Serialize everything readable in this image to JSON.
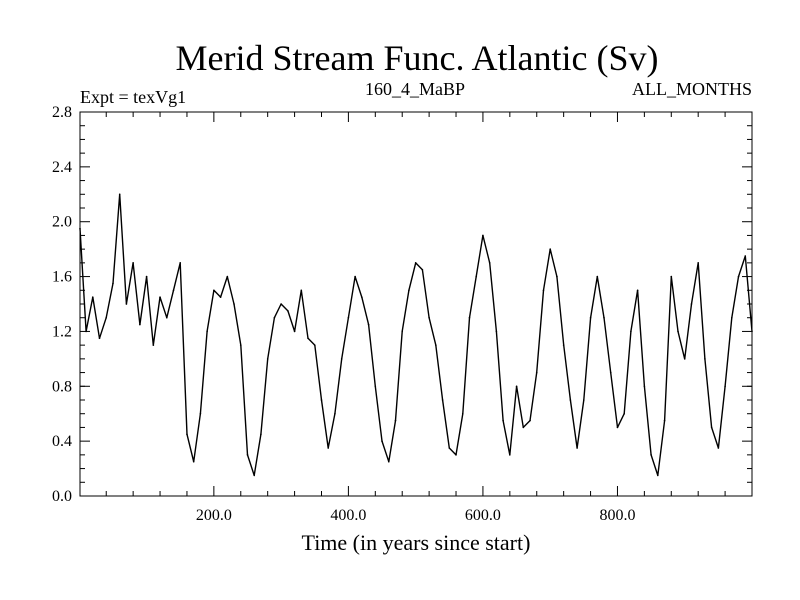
{
  "chart_data": {
    "type": "line",
    "title": "Merid Stream Func. Atlantic (Sv)",
    "subtitle_left": "Expt = texVg1",
    "subtitle_center": "160_4_MaBP",
    "subtitle_right": "ALL_MONTHS",
    "xlabel": "Time (in years since start)",
    "ylabel": "",
    "xlim": [
      1,
      1000
    ],
    "ylim": [
      0.0,
      2.8
    ],
    "xticks": [
      200,
      400,
      600,
      800
    ],
    "xtick_labels": [
      "200.0",
      "400.0",
      "600.0",
      "800.0"
    ],
    "yticks": [
      0.0,
      0.4,
      0.8,
      1.2,
      1.6,
      2.0,
      2.4,
      2.8
    ],
    "ytick_labels": [
      "0.0",
      "0.4",
      "0.8",
      "1.2",
      "1.6",
      "2.0",
      "2.4",
      "2.8"
    ],
    "grid": false,
    "color": "#000000",
    "series": [
      {
        "name": "Merid Stream Func. Atlantic",
        "x": [
          1,
          10,
          20,
          30,
          40,
          50,
          60,
          70,
          80,
          90,
          100,
          110,
          120,
          130,
          140,
          150,
          160,
          170,
          180,
          190,
          200,
          210,
          220,
          230,
          240,
          250,
          260,
          270,
          280,
          290,
          300,
          310,
          320,
          330,
          340,
          350,
          360,
          370,
          380,
          390,
          400,
          410,
          420,
          430,
          440,
          450,
          460,
          470,
          480,
          490,
          500,
          510,
          520,
          530,
          540,
          550,
          560,
          570,
          580,
          590,
          600,
          610,
          620,
          630,
          640,
          650,
          660,
          670,
          680,
          690,
          700,
          710,
          720,
          730,
          740,
          750,
          760,
          770,
          780,
          790,
          800,
          810,
          820,
          830,
          840,
          850,
          860,
          870,
          880,
          890,
          900,
          910,
          920,
          930,
          940,
          950,
          960,
          970,
          980,
          990,
          1000
        ],
        "values": [
          1.95,
          1.2,
          1.45,
          1.15,
          1.3,
          1.55,
          2.2,
          1.4,
          1.7,
          1.25,
          1.6,
          1.1,
          1.45,
          1.3,
          1.5,
          1.7,
          0.45,
          0.25,
          0.6,
          1.2,
          1.5,
          1.45,
          1.6,
          1.4,
          1.1,
          0.3,
          0.15,
          0.45,
          1.0,
          1.3,
          1.4,
          1.35,
          1.2,
          1.5,
          1.15,
          1.1,
          0.7,
          0.35,
          0.6,
          1.0,
          1.3,
          1.6,
          1.45,
          1.25,
          0.8,
          0.4,
          0.25,
          0.55,
          1.2,
          1.5,
          1.7,
          1.65,
          1.3,
          1.1,
          0.7,
          0.35,
          0.3,
          0.6,
          1.3,
          1.6,
          1.9,
          1.7,
          1.2,
          0.55,
          0.3,
          0.8,
          0.5,
          0.55,
          0.9,
          1.5,
          1.8,
          1.6,
          1.1,
          0.7,
          0.35,
          0.7,
          1.3,
          1.6,
          1.3,
          0.9,
          0.5,
          0.6,
          1.2,
          1.5,
          0.8,
          0.3,
          0.15,
          0.55,
          1.6,
          1.2,
          1.0,
          1.4,
          1.7,
          1.0,
          0.5,
          0.35,
          0.8,
          1.3,
          1.6,
          1.75,
          1.2
        ]
      }
    ]
  }
}
